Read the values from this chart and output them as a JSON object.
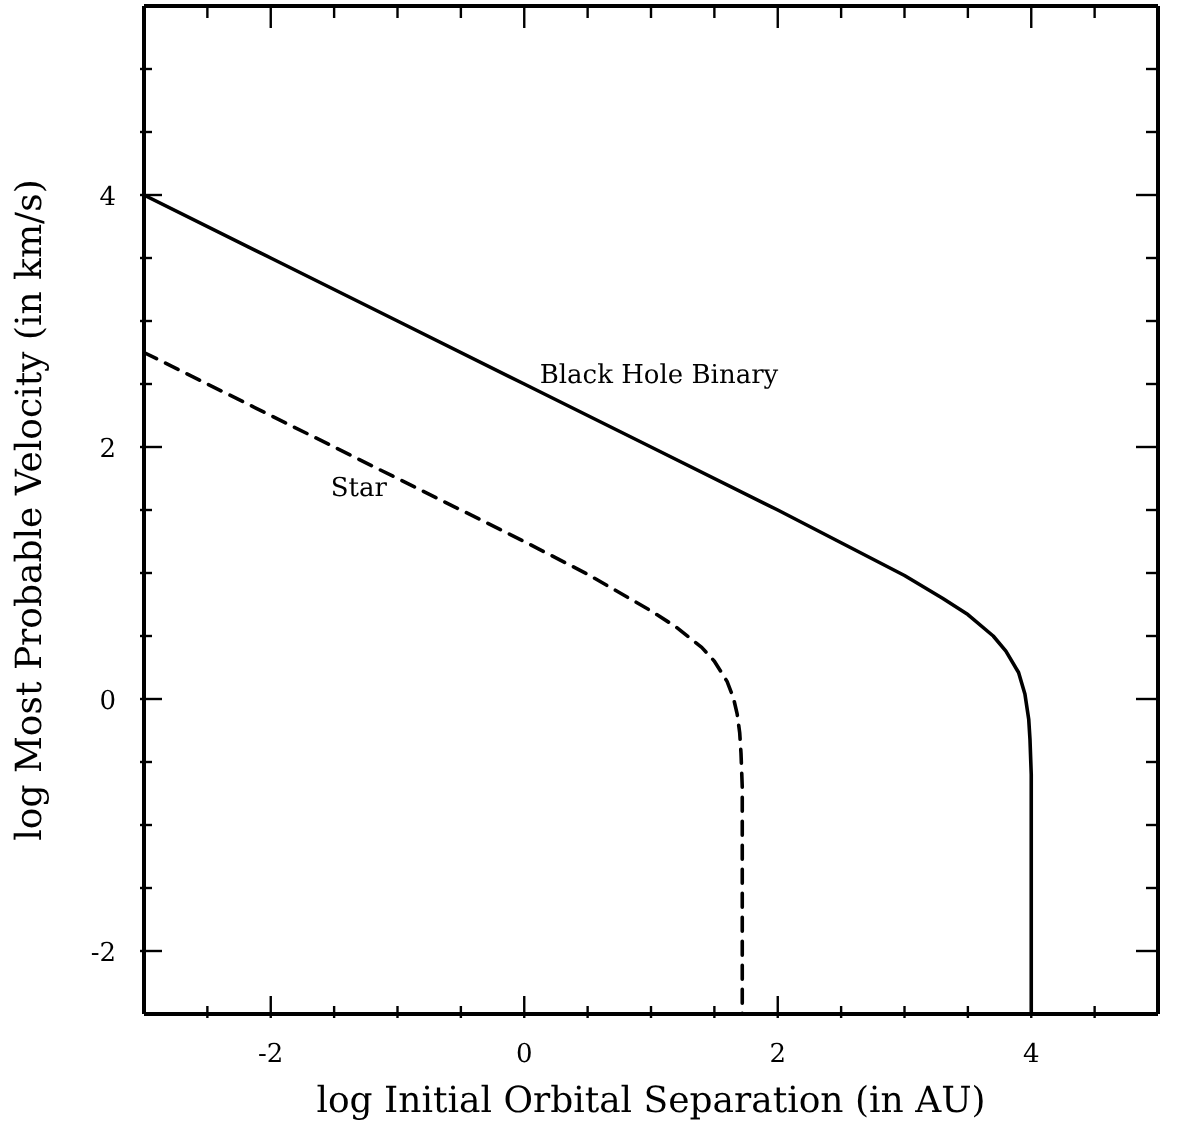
{
  "chart_data": {
    "type": "line",
    "xlabel": "log Initial Orbital Separation (in AU)",
    "ylabel": "log Most Probable Velocity (in km/s)",
    "series": [
      {
        "name": "Black Hole Binary",
        "color": "#000000",
        "line_style": "solid",
        "x": [
          -3,
          -2,
          -1,
          0,
          1,
          2,
          2.5,
          3,
          3.3,
          3.5,
          3.7,
          3.8,
          3.9,
          3.95,
          3.98,
          3.99,
          4,
          4
        ],
        "values": [
          4.0,
          3.5,
          3.0,
          2.5,
          2.0,
          1.5,
          1.24,
          0.98,
          0.8,
          0.67,
          0.5,
          0.38,
          0.21,
          0.04,
          -0.16,
          -0.32,
          -0.6,
          -2.5
        ]
      },
      {
        "name": "Star",
        "color": "#000000",
        "line_style": "dashed",
        "x": [
          -3,
          -2,
          -1,
          0,
          0.5,
          1,
          1.2,
          1.4,
          1.5,
          1.6,
          1.65,
          1.68,
          1.7,
          1.71,
          1.72,
          1.72
        ],
        "values": [
          2.75,
          2.25,
          1.75,
          1.25,
          0.99,
          0.7,
          0.57,
          0.41,
          0.3,
          0.14,
          0.01,
          -0.12,
          -0.27,
          -0.43,
          -0.7,
          -2.5
        ]
      }
    ],
    "xlim": [
      -3,
      5
    ],
    "xticks": [
      {
        "value": -2.5,
        "label": null
      },
      -2,
      {
        "value": -1.5,
        "label": null
      },
      {
        "value": -1,
        "label": null
      },
      {
        "value": -0.5,
        "label": null
      },
      0,
      {
        "value": 0.5,
        "label": null
      },
      {
        "value": 1,
        "label": null
      },
      {
        "value": 1.5,
        "label": null
      },
      2,
      {
        "value": 2.5,
        "label": null
      },
      {
        "value": 3,
        "label": null
      },
      {
        "value": 3.5,
        "label": null
      },
      4,
      {
        "value": 4.5,
        "label": null
      }
    ],
    "ylim": [
      -2.5,
      5.5
    ],
    "yticks": [
      -2,
      {
        "value": -1.5,
        "label": null
      },
      {
        "value": -1,
        "label": null
      },
      {
        "value": -0.5,
        "label": null
      },
      0,
      {
        "value": 0.5,
        "label": null
      },
      {
        "value": 1,
        "label": null
      },
      {
        "value": 1.5,
        "label": null
      },
      2,
      {
        "value": 2.5,
        "label": null
      },
      {
        "value": 3,
        "label": null
      },
      {
        "value": 3.5,
        "label": null
      },
      4,
      {
        "value": 4.5,
        "label": null
      },
      {
        "value": 5,
        "label": null
      }
    ]
  }
}
